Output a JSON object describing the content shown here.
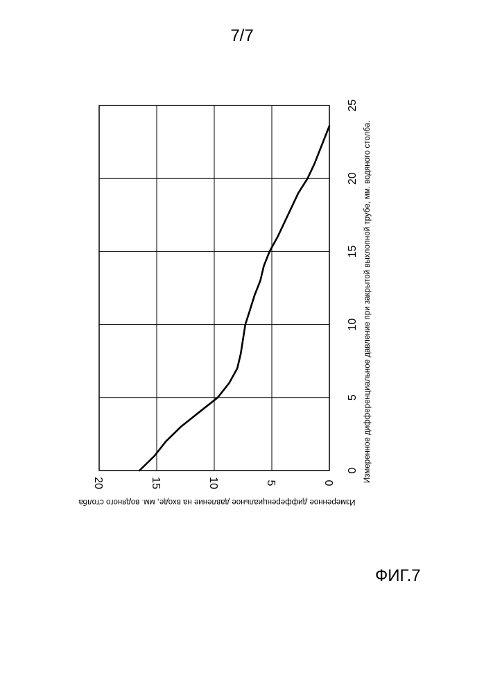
{
  "page": {
    "number": "7/7",
    "figure": "ФИГ.7"
  },
  "chart_data": {
    "type": "line",
    "title": "",
    "xlabel": "Измеренное дифференциальное давление при закрытой выхлопной трубе, мм. водяного столба.",
    "ylabel": "Измеренное дифференциальное давление на входе, мм. водяного столба",
    "xlim": [
      0,
      25
    ],
    "ylim": [
      0,
      20
    ],
    "x_ticks": [
      "0",
      "5",
      "10",
      "15",
      "20",
      "25"
    ],
    "y_ticks": [
      "0",
      "5",
      "10",
      "15",
      "20"
    ],
    "grid": true,
    "orientation": "rotated 90° clockwise",
    "x": [
      0,
      1,
      2,
      3,
      4,
      5,
      6,
      7,
      8,
      9,
      10,
      11,
      12,
      13,
      14,
      15,
      16,
      17,
      18,
      19,
      20,
      21,
      22,
      23,
      23.6
    ],
    "y": [
      16.5,
      15.2,
      14.2,
      12.9,
      11.3,
      9.7,
      8.7,
      8.0,
      7.7,
      7.5,
      7.3,
      6.9,
      6.5,
      6.0,
      5.7,
      5.2,
      4.5,
      3.9,
      3.3,
      2.7,
      1.9,
      1.3,
      0.8,
      0.3,
      0.0
    ]
  }
}
